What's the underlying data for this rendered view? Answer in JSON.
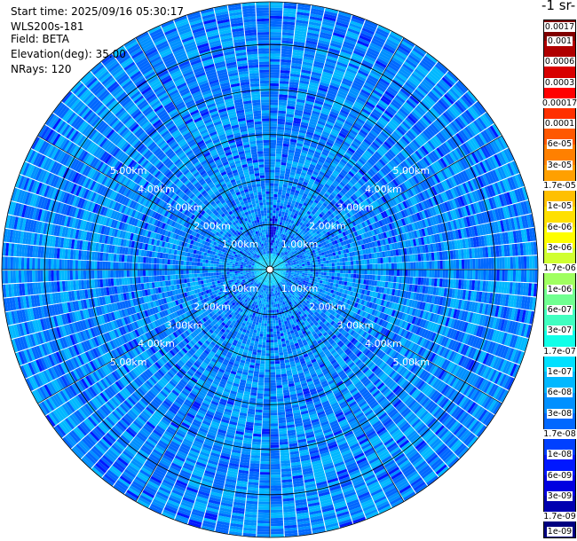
{
  "info": {
    "start_time": "Start time: 2025/09/16 05:30:17",
    "instrument": "WLS200s-181",
    "field": "Field: BETA",
    "elevation": "Elevation(deg): 35.00",
    "nrays": "NRays: 120"
  },
  "unit_title": "-1 sr-",
  "chart_data": {
    "type": "heatmap",
    "projection": "polar-ppi",
    "field": "BETA",
    "elevation_deg": 35.0,
    "nrays": 120,
    "range_km": [
      0,
      5.95
    ],
    "range_ring_labels": [
      "1.00km",
      "2.00km",
      "3.00km",
      "4.00km",
      "5.00km"
    ],
    "range_rings_km": [
      1,
      2,
      3,
      4,
      5
    ],
    "grid": true,
    "dominant_value": "3e-08",
    "colorbar": {
      "position": "right",
      "colors": [
        "#800000",
        "#b00000",
        "#d80000",
        "#ff0000",
        "#ff3000",
        "#ff5800",
        "#ff8000",
        "#ffa000",
        "#ffc000",
        "#ffe000",
        "#ffff00",
        "#d0ff30",
        "#a0ff60",
        "#70ff90",
        "#40ffc0",
        "#10ffe8",
        "#00e0ff",
        "#00b8ff",
        "#0090ff",
        "#0068ff",
        "#0040ff",
        "#0018ff",
        "#0000e0",
        "#0000b0",
        "#000080"
      ],
      "tick_labels": [
        "0.0017",
        "0.001",
        "0.0006",
        "0.0003",
        "0.00017",
        "0.0001",
        "6e-05",
        "3e-05",
        "1.7e-05",
        "1e-05",
        "6e-06",
        "3e-06",
        "1.7e-06",
        "1e-06",
        "6e-07",
        "3e-07",
        "1.7e-07",
        "1e-07",
        "6e-08",
        "3e-08",
        "1.7e-08",
        "1e-08",
        "6e-09",
        "3e-09",
        "1.7e-09",
        "1e-09"
      ]
    }
  }
}
